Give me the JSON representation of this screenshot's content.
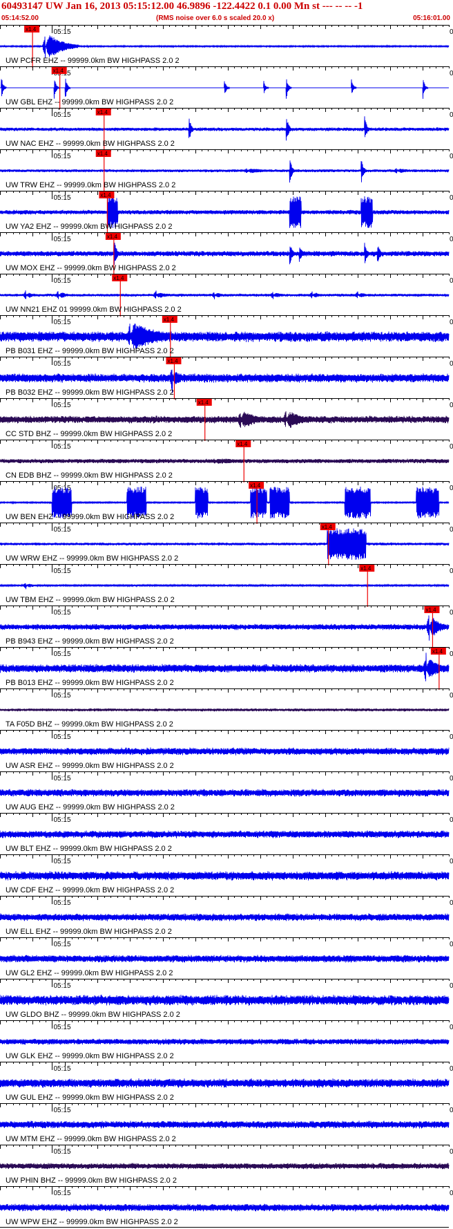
{
  "header": {
    "title": "60493147 UW Jan 16, 2013 05:15:12.00   46.9896 -122.4422   0.1 0.00 Mn st --- -- --   -1",
    "start_time": "05:14:52.00",
    "rms_note": "(RMS noise over 6.0 s scaled 20.0 x)",
    "end_time": "05:16:01.00"
  },
  "colors": {
    "trace_blue": "#0000ee",
    "trace_dark": "#2a0a55",
    "pick_red": "#ee0000",
    "header_red": "#cc0000"
  },
  "chart_data": {
    "type": "line",
    "title": "60493147 UW Jan 16, 2013 05:15:12.00   46.9896 -122.4422   0.1 0.00 Mn st --- -- --   -1",
    "x_start": "05:14:52.00",
    "x_end": "05:16:01.00",
    "x_range_seconds": [
      0,
      69
    ],
    "minute_tick_label": "05:15",
    "minute_tick_second": 8,
    "pick_label": "x1.4",
    "right_label": "0",
    "grid": false,
    "traces": [
      {
        "label": "UW PCFR EHZ -- 99999.0km BW  HIGHPASS  2.0  2",
        "pick_s": 5.0,
        "color": "blue",
        "amp": 0.05,
        "events": [
          {
            "t": 7.0,
            "dur": 5,
            "amp": 1.0
          }
        ]
      },
      {
        "label": "UW GBL EHZ -- 99999.0km BW  HIGHPASS  2.0  2",
        "pick_s": 9.2,
        "color": "blue",
        "amp": 0.0,
        "events": [
          {
            "t": 0.2,
            "dur": 0.8,
            "amp": 0.8,
            "kind": "spike"
          },
          {
            "t": 8.3,
            "dur": 0.8,
            "amp": 0.9,
            "kind": "spike"
          },
          {
            "t": 10.0,
            "dur": 0.8,
            "amp": 0.9,
            "kind": "spike"
          },
          {
            "t": 34.5,
            "dur": 0.8,
            "amp": 0.6,
            "kind": "spike"
          },
          {
            "t": 40.5,
            "dur": 0.8,
            "amp": 0.6,
            "kind": "spike"
          },
          {
            "t": 44.0,
            "dur": 0.8,
            "amp": 0.8,
            "kind": "spike"
          },
          {
            "t": 54.0,
            "dur": 0.8,
            "amp": 0.6,
            "kind": "spike"
          },
          {
            "t": 65.0,
            "dur": 0.8,
            "amp": 0.8,
            "kind": "spike"
          }
        ]
      },
      {
        "label": "UW NAC EHZ -- 99999.0km BW  HIGHPASS  2.0  2",
        "pick_s": 16.0,
        "color": "blue",
        "amp": 0.12,
        "events": [
          {
            "t": 29.0,
            "dur": 1.0,
            "amp": 1.0,
            "kind": "spike"
          },
          {
            "t": 44.0,
            "dur": 1.0,
            "amp": 1.0,
            "kind": "spike"
          },
          {
            "t": 56.0,
            "dur": 1.0,
            "amp": 1.0,
            "kind": "spike"
          }
        ]
      },
      {
        "label": "UW TRW EHZ -- 99999.0km BW  HIGHPASS  2.0  2",
        "pick_s": 16.0,
        "color": "blue",
        "amp": 0.1,
        "events": [
          {
            "t": 38.0,
            "dur": 6,
            "amp": 0.2
          },
          {
            "t": 44.5,
            "dur": 1.0,
            "amp": 1.0,
            "kind": "spike"
          },
          {
            "t": 55.5,
            "dur": 1.0,
            "amp": 0.9,
            "kind": "spike"
          },
          {
            "t": 61.0,
            "dur": 4,
            "amp": 0.2
          }
        ]
      },
      {
        "label": "UW YA2 EHZ -- 99999.0km BW  HIGHPASS  2.0  2",
        "pick_s": 16.5,
        "color": "blue",
        "amp": 0.15,
        "events": [
          {
            "t": 16.5,
            "dur": 1.6,
            "amp": 1.0,
            "kind": "burst"
          },
          {
            "t": 44.5,
            "dur": 1.8,
            "amp": 1.0,
            "kind": "burst"
          },
          {
            "t": 55.5,
            "dur": 1.8,
            "amp": 1.0,
            "kind": "burst"
          }
        ]
      },
      {
        "label": "UW MOX EHZ -- 99999.0km BW  HIGHPASS  2.0  2",
        "pick_s": 17.5,
        "color": "blue",
        "amp": 0.18,
        "events": [
          {
            "t": 17.5,
            "dur": 1.2,
            "amp": 1.0,
            "kind": "spike"
          },
          {
            "t": 44.5,
            "dur": 1.2,
            "amp": 0.9,
            "kind": "spike"
          },
          {
            "t": 46.0,
            "dur": 1.2,
            "amp": 0.7,
            "kind": "spike"
          },
          {
            "t": 56.0,
            "dur": 1.2,
            "amp": 0.8,
            "kind": "spike"
          },
          {
            "t": 58.0,
            "dur": 1.2,
            "amp": 0.7,
            "kind": "spike"
          }
        ]
      },
      {
        "label": "UW NN21 EHZ 01 99999.0km BW  HIGHPASS  2.0  2",
        "pick_s": 18.5,
        "color": "blue",
        "amp": 0.1,
        "events": [
          {
            "t": 4.0,
            "dur": 1.5,
            "amp": 0.4
          },
          {
            "t": 9.0,
            "dur": 2,
            "amp": 0.35
          },
          {
            "t": 24.0,
            "dur": 3,
            "amp": 0.3
          },
          {
            "t": 33.0,
            "dur": 2,
            "amp": 0.3
          },
          {
            "t": 42.0,
            "dur": 2,
            "amp": 0.3
          },
          {
            "t": 48.0,
            "dur": 2,
            "amp": 0.3
          },
          {
            "t": 55.0,
            "dur": 2,
            "amp": 0.3
          }
        ]
      },
      {
        "label": "PB B031 EHZ -- 99999.0km BW  HIGHPASS  2.0  2",
        "pick_s": 26.2,
        "color": "blue",
        "amp": 0.35,
        "events": [
          {
            "t": 20.0,
            "dur": 10,
            "amp": 1.0
          }
        ]
      },
      {
        "label": "PB B032 EHZ -- 99999.0km BW  HIGHPASS  2.0  2",
        "pick_s": 26.8,
        "color": "blue",
        "amp": 0.3,
        "events": [
          {
            "t": 26.5,
            "dur": 2,
            "amp": 1.0
          }
        ]
      },
      {
        "label": "CC STD BHZ -- 99999.0km BW  HIGHPASS  2.0  2",
        "pick_s": 31.5,
        "color": "dark",
        "amp": 0.25,
        "events": [
          {
            "t": 37.0,
            "dur": 5,
            "amp": 0.7
          },
          {
            "t": 44.0,
            "dur": 5,
            "amp": 0.7
          }
        ]
      },
      {
        "label": "CN EDB BHZ -- 99999.0km BW  HIGHPASS  2.0  2",
        "pick_s": 37.5,
        "color": "dark",
        "amp": 0.15,
        "events": [
          {
            "t": 33.0,
            "dur": 12,
            "amp": 0.2
          }
        ]
      },
      {
        "label": "UW BEN EHZ -- 99999.0km BW  HIGHPASS  2.0  2",
        "pick_s": 39.5,
        "color": "blue",
        "amp": 0.05,
        "events": [
          {
            "t": 8.0,
            "dur": 3.0,
            "amp": 1.0,
            "kind": "burst"
          },
          {
            "t": 19.5,
            "dur": 3.0,
            "amp": 1.0,
            "kind": "burst"
          },
          {
            "t": 30.0,
            "dur": 2.0,
            "amp": 1.0,
            "kind": "burst"
          },
          {
            "t": 38.5,
            "dur": 2.5,
            "amp": 1.0,
            "kind": "burst"
          },
          {
            "t": 41.5,
            "dur": 3.0,
            "amp": 1.0,
            "kind": "burst"
          },
          {
            "t": 53.0,
            "dur": 4.0,
            "amp": 1.0,
            "kind": "burst"
          },
          {
            "t": 64.0,
            "dur": 3.5,
            "amp": 1.0,
            "kind": "burst"
          }
        ]
      },
      {
        "label": "UW WRW EHZ -- 99999.0km BW  HIGHPASS  2.0  2",
        "pick_s": 50.5,
        "color": "blue",
        "amp": 0.1,
        "events": [
          {
            "t": 50.3,
            "dur": 6,
            "amp": 1.0,
            "kind": "burst"
          }
        ]
      },
      {
        "label": "UW TBM EHZ -- 99999.0km BW  HIGHPASS  2.0  2",
        "pick_s": 56.5,
        "color": "blue",
        "amp": 0.06,
        "events": [
          {
            "t": 4.0,
            "dur": 2,
            "amp": 0.25
          }
        ]
      },
      {
        "label": "PB B943 EHZ -- 99999.0km BW  HIGHPASS  2.0  2",
        "pick_s": 66.5,
        "color": "blue",
        "amp": 0.2,
        "events": [
          {
            "t": 66.0,
            "dur": 3,
            "amp": 1.0
          }
        ]
      },
      {
        "label": "PB B013 EHZ -- 99999.0km BW  HIGHPASS  2.0  2",
        "pick_s": 67.5,
        "color": "blue",
        "amp": 0.28,
        "events": [
          {
            "t": 65.5,
            "dur": 3.5,
            "amp": 1.0
          }
        ]
      },
      {
        "label": "TA F05D BHZ -- 99999.0km BW  HIGHPASS  2.0  2",
        "pick_s": null,
        "color": "dark",
        "amp": 0.1,
        "events": []
      },
      {
        "label": "UW ASR EHZ -- 99999.0km BW  HIGHPASS  2.0  2",
        "pick_s": null,
        "color": "blue",
        "amp": 0.25,
        "events": []
      },
      {
        "label": "UW AUG EHZ -- 99999.0km BW  HIGHPASS  2.0  2",
        "pick_s": null,
        "color": "blue",
        "amp": 0.25,
        "events": []
      },
      {
        "label": "UW BLT EHZ -- 99999.0km BW  HIGHPASS  2.0  2",
        "pick_s": null,
        "color": "blue",
        "amp": 0.25,
        "events": []
      },
      {
        "label": "UW CDF EHZ -- 99999.0km BW  HIGHPASS  2.0  2",
        "pick_s": null,
        "color": "blue",
        "amp": 0.3,
        "events": []
      },
      {
        "label": "UW ELL EHZ -- 99999.0km BW  HIGHPASS  2.0  2",
        "pick_s": null,
        "color": "blue",
        "amp": 0.25,
        "events": []
      },
      {
        "label": "UW GL2 EHZ -- 99999.0km BW  HIGHPASS  2.0  2",
        "pick_s": null,
        "color": "blue",
        "amp": 0.25,
        "events": []
      },
      {
        "label": "UW GLDO BHZ -- 99999.0km BW  HIGHPASS  2.0  2",
        "pick_s": null,
        "color": "blue",
        "amp": 0.35,
        "events": []
      },
      {
        "label": "UW GLK EHZ -- 99999.0km BW  HIGHPASS  2.0  2",
        "pick_s": null,
        "color": "blue",
        "amp": 0.2,
        "events": []
      },
      {
        "label": "UW GUL EHZ -- 99999.0km BW  HIGHPASS  2.0  2",
        "pick_s": null,
        "color": "blue",
        "amp": 0.3,
        "events": []
      },
      {
        "label": "UW MTM EHZ -- 99999.0km BW  HIGHPASS  2.0  2",
        "pick_s": null,
        "color": "blue",
        "amp": 0.25,
        "events": []
      },
      {
        "label": "UW PHIN BHZ -- 99999.0km BW  HIGHPASS  2.0  2",
        "pick_s": null,
        "color": "dark",
        "amp": 0.2,
        "events": []
      },
      {
        "label": "UW WPW EHZ -- 99999.0km BW  HIGHPASS  2.0  2",
        "pick_s": null,
        "color": "blue",
        "amp": 0.25,
        "events": []
      }
    ]
  }
}
